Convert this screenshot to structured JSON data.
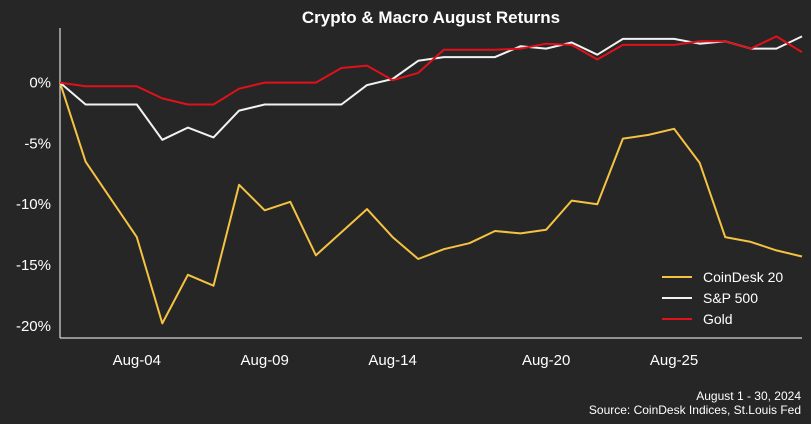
{
  "chart_data": {
    "type": "line",
    "title": "Crypto & Macro August Returns",
    "x": [
      "Aug-01",
      "Aug-02",
      "Aug-03",
      "Aug-04",
      "Aug-05",
      "Aug-06",
      "Aug-07",
      "Aug-08",
      "Aug-09",
      "Aug-10",
      "Aug-11",
      "Aug-12",
      "Aug-13",
      "Aug-14",
      "Aug-15",
      "Aug-16",
      "Aug-17",
      "Aug-18",
      "Aug-19",
      "Aug-20",
      "Aug-21",
      "Aug-22",
      "Aug-23",
      "Aug-24",
      "Aug-25",
      "Aug-26",
      "Aug-27",
      "Aug-28",
      "Aug-29",
      "Aug-30"
    ],
    "x_ticks": [
      "Aug-04",
      "Aug-09",
      "Aug-14",
      "Aug-20",
      "Aug-25"
    ],
    "y_ticks": [
      0,
      -5,
      -10,
      -15,
      -20
    ],
    "y_tick_format": "%",
    "ylim": [
      -21,
      4
    ],
    "xlabel": "",
    "ylabel": "",
    "grid": false,
    "legend_position": "bottom-right",
    "series": [
      {
        "name": "CoinDesk 20",
        "color": "#f5c342",
        "values": [
          0,
          -6.5,
          -9.6,
          -12.7,
          -19.8,
          -15.8,
          -16.7,
          -8.4,
          -10.5,
          -9.8,
          -14.2,
          -12.3,
          -10.4,
          -12.7,
          -14.5,
          -13.7,
          -13.2,
          -12.2,
          -12.4,
          -12.1,
          -9.7,
          -10.0,
          -4.6,
          -4.3,
          -3.8,
          -6.6,
          -12.7,
          -13.1,
          -13.8,
          -14.3
        ]
      },
      {
        "name": "S&P 500",
        "color": "#f2f2f2",
        "values": [
          0,
          -1.8,
          -1.8,
          -1.8,
          -4.7,
          -3.7,
          -4.5,
          -2.3,
          -1.8,
          -1.8,
          -1.8,
          -1.8,
          -0.2,
          0.3,
          1.8,
          2.1,
          2.1,
          2.1,
          3.0,
          2.8,
          3.3,
          2.3,
          3.6,
          3.6,
          3.6,
          3.2,
          3.4,
          2.8,
          2.8,
          3.8
        ]
      },
      {
        "name": "Gold",
        "color": "#e0111b",
        "values": [
          0,
          -0.3,
          -0.3,
          -0.3,
          -1.3,
          -1.8,
          -1.8,
          -0.5,
          0,
          0,
          0,
          1.2,
          1.4,
          0.2,
          0.8,
          2.7,
          2.7,
          2.7,
          2.8,
          3.2,
          3.1,
          1.9,
          3.1,
          3.1,
          3.1,
          3.4,
          3.4,
          2.8,
          3.8,
          2.5
        ]
      }
    ],
    "footer": {
      "date_range": "August 1 - 30, 2024",
      "source": "Source: CoinDesk Indices, St.Louis Fed"
    }
  }
}
